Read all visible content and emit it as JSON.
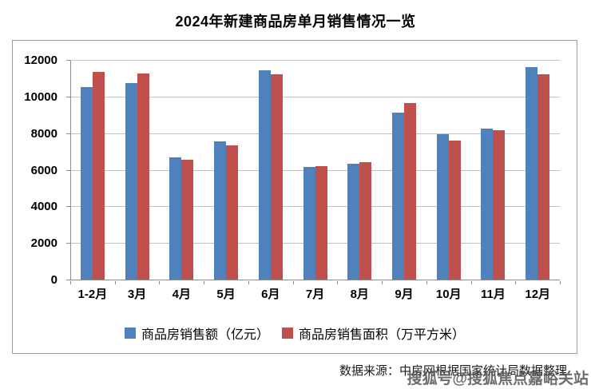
{
  "title": "2024年新建商品房单月销售情况一览",
  "source_note": "数据来源：中房网根据国家统计局数据整理",
  "watermark": "搜狐号@搜狐焦点嘉峪关站",
  "colors": {
    "sales_amount": "#4F81BD",
    "sales_area": "#C0504D",
    "gridline": "#c3c3c3",
    "axis": "#8c8c8c"
  },
  "chart_data": {
    "type": "bar",
    "categories": [
      "1-2月",
      "3月",
      "4月",
      "5月",
      "6月",
      "7月",
      "8月",
      "9月",
      "10月",
      "11月",
      "12月"
    ],
    "series": [
      {
        "key": "sales-amount",
        "name": "商品房销售额（亿元）",
        "color": "#4F81BD",
        "values": [
          10560,
          10790,
          6710,
          7600,
          11470,
          6200,
          6390,
          9160,
          7980,
          8270,
          11630
        ]
      },
      {
        "key": "sales-area",
        "name": "商品房销售面积（万平方米）",
        "color": "#C0504D",
        "values": [
          11370,
          11300,
          6580,
          7390,
          11270,
          6230,
          6450,
          9680,
          7650,
          8190,
          11270
        ]
      }
    ],
    "ylim": [
      0,
      12000
    ],
    "yticks": [
      0,
      2000,
      4000,
      6000,
      8000,
      10000,
      12000
    ],
    "grid": true,
    "legend_position": "bottom"
  }
}
